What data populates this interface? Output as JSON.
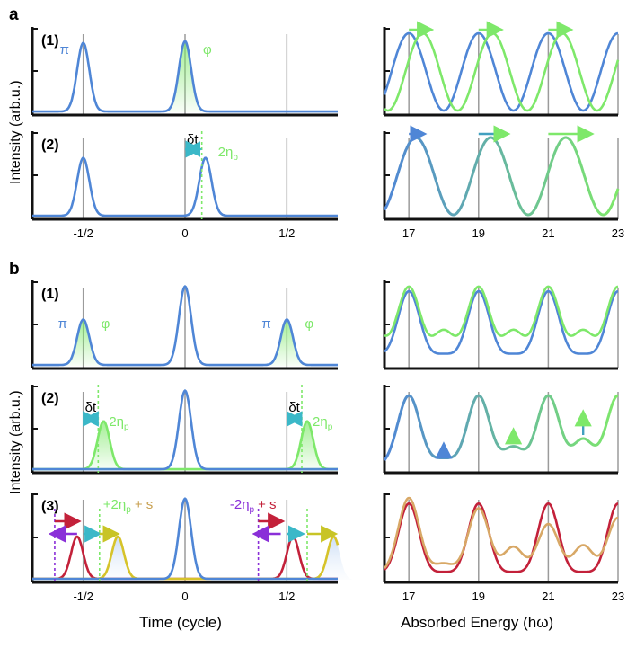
{
  "figure": {
    "panel_a_label": "a",
    "panel_b_label": "b",
    "y_label": "Intensity (arb.u.)",
    "x_label_time": "Time (cycle)",
    "x_label_energy": "Absorbed Energy (hω)"
  },
  "colors": {
    "blue": "#4f86d6",
    "green": "#7ee86a",
    "teal": "#41a0c0",
    "red": "#c3213a",
    "yellow": "#d6c32a",
    "orange": "#d8a866",
    "purple": "#8a2fd8",
    "grid": "#9b9b9b"
  },
  "chart_data": [
    {
      "id": "a1-time",
      "type": "line",
      "row_label": "(1)",
      "xlim": [
        -0.75,
        0.75
      ],
      "xticks": [
        -0.5,
        0,
        0.5
      ],
      "xticklabels": [],
      "peaks": [
        {
          "center": -0.5,
          "height": 0.83,
          "color": "blue"
        },
        {
          "center": 0.0,
          "height": 0.85,
          "color": "blue",
          "fill": "green"
        }
      ],
      "annotations": [
        {
          "text": "π",
          "color": "blue"
        },
        {
          "text": "φ",
          "color": "green"
        }
      ]
    },
    {
      "id": "a1-energy",
      "type": "line",
      "xlim": [
        16.3,
        23
      ],
      "xticks": [
        17,
        19,
        21,
        23
      ],
      "xticklabels": [],
      "series": [
        {
          "name": "",
          "color": "blue",
          "period": 2,
          "max_at": 17.0
        },
        {
          "name": "",
          "color": "green",
          "period": 2,
          "max_at": 17.4
        }
      ],
      "arrows": [
        {
          "x0": 17.0,
          "x1": 17.6,
          "color": "green"
        },
        {
          "x0": 19.0,
          "x1": 19.6,
          "color": "green"
        },
        {
          "x0": 21.0,
          "x1": 21.6,
          "color": "green"
        }
      ]
    },
    {
      "id": "a2-time",
      "type": "line",
      "row_label": "(2)",
      "xlim": [
        -0.75,
        0.75
      ],
      "xticks": [
        -0.5,
        0,
        0.5
      ],
      "xticklabels": [
        "-1/2",
        "0",
        "1/2"
      ],
      "peaks": [
        {
          "center": -0.5,
          "height": 0.7,
          "color": "blue"
        },
        {
          "center": 0.1,
          "height": 0.7,
          "color": "blue"
        }
      ],
      "annotations": [
        {
          "text": "δt",
          "color": "black"
        },
        {
          "text": "2η",
          "sub": "p",
          "color": "green"
        }
      ]
    },
    {
      "id": "a2-energy",
      "type": "line",
      "xlim": [
        16.3,
        23
      ],
      "xticks": [
        17,
        19,
        21,
        23
      ],
      "xticklabels": [
        "17",
        "19",
        "21",
        "23"
      ],
      "series": [
        {
          "name": "",
          "color": "teal-to-green",
          "period": 2.15,
          "max_at": 17.2
        }
      ],
      "arrows": [
        {
          "x0": 17.0,
          "x1": 17.4,
          "color": "blue"
        },
        {
          "x0": 19.0,
          "x1": 19.8,
          "color": "teal"
        },
        {
          "x0": 21.0,
          "x1": 22.2,
          "color": "green"
        }
      ]
    },
    {
      "id": "b1-time",
      "type": "line",
      "row_label": "(1)",
      "xlim": [
        -0.75,
        0.75
      ],
      "xticks": [
        -0.5,
        0,
        0.5
      ],
      "xticklabels": [],
      "peaks": [
        {
          "center": -0.5,
          "height": 0.55,
          "color": "blue",
          "fill": "green"
        },
        {
          "center": 0.0,
          "height": 0.95,
          "color": "blue"
        },
        {
          "center": 0.5,
          "height": 0.55,
          "color": "blue",
          "fill": "green"
        }
      ],
      "annotations": [
        {
          "text": "π",
          "color": "blue"
        },
        {
          "text": "φ",
          "color": "green"
        },
        {
          "text": "π",
          "color": "blue"
        },
        {
          "text": "φ",
          "color": "green"
        }
      ]
    },
    {
      "id": "b1-energy",
      "type": "line",
      "xlim": [
        16.3,
        23
      ],
      "xticks": [
        17,
        19,
        21,
        23
      ],
      "xticklabels": [],
      "series": [
        {
          "name": "",
          "color": "blue",
          "main_peaks": 0.9,
          "side_peaks": 0.12
        },
        {
          "name": "",
          "color": "green",
          "main_peaks": 0.9,
          "side_peaks": 0.33
        }
      ]
    },
    {
      "id": "b2-time",
      "type": "line",
      "row_label": "(2)",
      "xlim": [
        -0.75,
        0.75
      ],
      "xticks": [
        -0.5,
        0,
        0.5
      ],
      "xticklabels": [],
      "peaks": [
        {
          "center": -0.4,
          "height": 0.58,
          "color": "green"
        },
        {
          "center": 0.0,
          "height": 0.95,
          "color": "blue"
        },
        {
          "center": 0.6,
          "height": 0.58,
          "color": "green"
        }
      ],
      "annotations": [
        {
          "text": "δt",
          "color": "black"
        },
        {
          "text": "2η",
          "sub": "p",
          "color": "green"
        },
        {
          "text": "δt",
          "color": "black"
        },
        {
          "text": "2η",
          "sub": "p",
          "color": "green"
        }
      ]
    },
    {
      "id": "b2-energy",
      "type": "line",
      "xlim": [
        16.3,
        23
      ],
      "xticks": [
        17,
        19,
        21,
        23
      ],
      "xticklabels": [],
      "series": [
        {
          "name": "",
          "color": "teal-to-green",
          "main_peaks": 0.9,
          "side_peaks": [
            0.1,
            0.25,
            0.35
          ]
        }
      ]
    },
    {
      "id": "b3-time",
      "type": "line",
      "row_label": "(3)",
      "xlim": [
        -0.75,
        0.75
      ],
      "xticks": [
        -0.5,
        0,
        0.5
      ],
      "xticklabels": [
        "-1/2",
        "0",
        "1/2"
      ],
      "peaks": [
        {
          "center": -0.53,
          "height": 0.5,
          "color": "red"
        },
        {
          "center": -0.33,
          "height": 0.5,
          "color": "yellow"
        },
        {
          "center": 0.0,
          "height": 0.95,
          "color": "blue"
        },
        {
          "center": 0.53,
          "height": 0.5,
          "color": "red"
        },
        {
          "center": 0.73,
          "height": 0.5,
          "color": "yellow"
        }
      ],
      "annotations": [
        {
          "text": "+2η",
          "sub": "p",
          "tail": "+ s",
          "color": "green"
        },
        {
          "text": "-2η",
          "sub": "p",
          "tail": "+ s",
          "color": "purple"
        }
      ]
    },
    {
      "id": "b3-energy",
      "type": "line",
      "xlim": [
        16.3,
        23
      ],
      "xticks": [
        17,
        19,
        21,
        23
      ],
      "xticklabels": [
        "17",
        "19",
        "21",
        "23"
      ],
      "series": [
        {
          "name": "",
          "color": "red",
          "main_peaks": 0.9,
          "side_peaks": 0.05
        },
        {
          "name": "",
          "color": "orange",
          "main_peaks": 0.8,
          "side_peaks": 0.3
        }
      ]
    }
  ]
}
